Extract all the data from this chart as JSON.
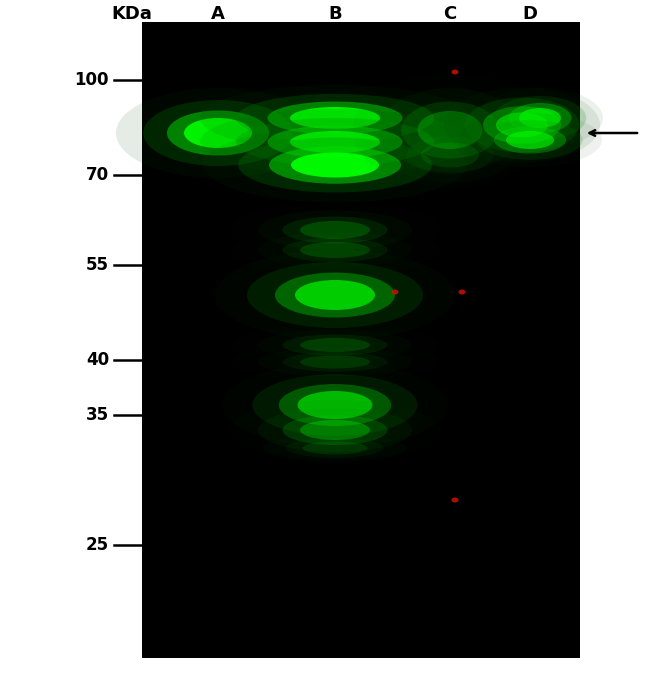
{
  "figure_width": 6.5,
  "figure_height": 6.9,
  "dpi": 100,
  "background_color": "#ffffff",
  "gel_background": "#000000",
  "lane_labels": [
    "A",
    "B",
    "C",
    "D"
  ],
  "kda_label": "KDa",
  "mw_labels": [
    "100",
    "70",
    "55",
    "40",
    "35",
    "25"
  ],
  "font_size_labels": 13,
  "font_size_mw": 12
}
